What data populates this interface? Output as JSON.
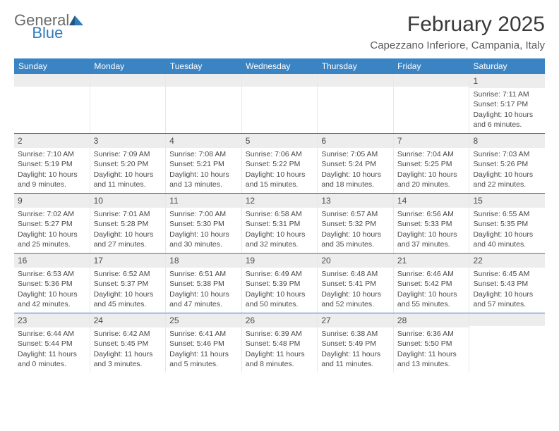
{
  "logo": {
    "text_general": "General",
    "text_blue": "Blue"
  },
  "title": "February 2025",
  "location": "Capezzano Inferiore, Campania, Italy",
  "colors": {
    "header_bg": "#3b84c4",
    "header_text": "#ffffff",
    "band_bg": "#ededed",
    "row_border": "#2f7bbf",
    "text": "#4a4a4a",
    "logo_blue": "#2f7bbf",
    "logo_gray": "#6b6b6b"
  },
  "daynames": [
    "Sunday",
    "Monday",
    "Tuesday",
    "Wednesday",
    "Thursday",
    "Friday",
    "Saturday"
  ],
  "weeks": [
    [
      null,
      null,
      null,
      null,
      null,
      null,
      {
        "n": "1",
        "sunrise": "Sunrise: 7:11 AM",
        "sunset": "Sunset: 5:17 PM",
        "day1": "Daylight: 10 hours",
        "day2": "and 6 minutes."
      }
    ],
    [
      {
        "n": "2",
        "sunrise": "Sunrise: 7:10 AM",
        "sunset": "Sunset: 5:19 PM",
        "day1": "Daylight: 10 hours",
        "day2": "and 9 minutes."
      },
      {
        "n": "3",
        "sunrise": "Sunrise: 7:09 AM",
        "sunset": "Sunset: 5:20 PM",
        "day1": "Daylight: 10 hours",
        "day2": "and 11 minutes."
      },
      {
        "n": "4",
        "sunrise": "Sunrise: 7:08 AM",
        "sunset": "Sunset: 5:21 PM",
        "day1": "Daylight: 10 hours",
        "day2": "and 13 minutes."
      },
      {
        "n": "5",
        "sunrise": "Sunrise: 7:06 AM",
        "sunset": "Sunset: 5:22 PM",
        "day1": "Daylight: 10 hours",
        "day2": "and 15 minutes."
      },
      {
        "n": "6",
        "sunrise": "Sunrise: 7:05 AM",
        "sunset": "Sunset: 5:24 PM",
        "day1": "Daylight: 10 hours",
        "day2": "and 18 minutes."
      },
      {
        "n": "7",
        "sunrise": "Sunrise: 7:04 AM",
        "sunset": "Sunset: 5:25 PM",
        "day1": "Daylight: 10 hours",
        "day2": "and 20 minutes."
      },
      {
        "n": "8",
        "sunrise": "Sunrise: 7:03 AM",
        "sunset": "Sunset: 5:26 PM",
        "day1": "Daylight: 10 hours",
        "day2": "and 22 minutes."
      }
    ],
    [
      {
        "n": "9",
        "sunrise": "Sunrise: 7:02 AM",
        "sunset": "Sunset: 5:27 PM",
        "day1": "Daylight: 10 hours",
        "day2": "and 25 minutes."
      },
      {
        "n": "10",
        "sunrise": "Sunrise: 7:01 AM",
        "sunset": "Sunset: 5:28 PM",
        "day1": "Daylight: 10 hours",
        "day2": "and 27 minutes."
      },
      {
        "n": "11",
        "sunrise": "Sunrise: 7:00 AM",
        "sunset": "Sunset: 5:30 PM",
        "day1": "Daylight: 10 hours",
        "day2": "and 30 minutes."
      },
      {
        "n": "12",
        "sunrise": "Sunrise: 6:58 AM",
        "sunset": "Sunset: 5:31 PM",
        "day1": "Daylight: 10 hours",
        "day2": "and 32 minutes."
      },
      {
        "n": "13",
        "sunrise": "Sunrise: 6:57 AM",
        "sunset": "Sunset: 5:32 PM",
        "day1": "Daylight: 10 hours",
        "day2": "and 35 minutes."
      },
      {
        "n": "14",
        "sunrise": "Sunrise: 6:56 AM",
        "sunset": "Sunset: 5:33 PM",
        "day1": "Daylight: 10 hours",
        "day2": "and 37 minutes."
      },
      {
        "n": "15",
        "sunrise": "Sunrise: 6:55 AM",
        "sunset": "Sunset: 5:35 PM",
        "day1": "Daylight: 10 hours",
        "day2": "and 40 minutes."
      }
    ],
    [
      {
        "n": "16",
        "sunrise": "Sunrise: 6:53 AM",
        "sunset": "Sunset: 5:36 PM",
        "day1": "Daylight: 10 hours",
        "day2": "and 42 minutes."
      },
      {
        "n": "17",
        "sunrise": "Sunrise: 6:52 AM",
        "sunset": "Sunset: 5:37 PM",
        "day1": "Daylight: 10 hours",
        "day2": "and 45 minutes."
      },
      {
        "n": "18",
        "sunrise": "Sunrise: 6:51 AM",
        "sunset": "Sunset: 5:38 PM",
        "day1": "Daylight: 10 hours",
        "day2": "and 47 minutes."
      },
      {
        "n": "19",
        "sunrise": "Sunrise: 6:49 AM",
        "sunset": "Sunset: 5:39 PM",
        "day1": "Daylight: 10 hours",
        "day2": "and 50 minutes."
      },
      {
        "n": "20",
        "sunrise": "Sunrise: 6:48 AM",
        "sunset": "Sunset: 5:41 PM",
        "day1": "Daylight: 10 hours",
        "day2": "and 52 minutes."
      },
      {
        "n": "21",
        "sunrise": "Sunrise: 6:46 AM",
        "sunset": "Sunset: 5:42 PM",
        "day1": "Daylight: 10 hours",
        "day2": "and 55 minutes."
      },
      {
        "n": "22",
        "sunrise": "Sunrise: 6:45 AM",
        "sunset": "Sunset: 5:43 PM",
        "day1": "Daylight: 10 hours",
        "day2": "and 57 minutes."
      }
    ],
    [
      {
        "n": "23",
        "sunrise": "Sunrise: 6:44 AM",
        "sunset": "Sunset: 5:44 PM",
        "day1": "Daylight: 11 hours",
        "day2": "and 0 minutes."
      },
      {
        "n": "24",
        "sunrise": "Sunrise: 6:42 AM",
        "sunset": "Sunset: 5:45 PM",
        "day1": "Daylight: 11 hours",
        "day2": "and 3 minutes."
      },
      {
        "n": "25",
        "sunrise": "Sunrise: 6:41 AM",
        "sunset": "Sunset: 5:46 PM",
        "day1": "Daylight: 11 hours",
        "day2": "and 5 minutes."
      },
      {
        "n": "26",
        "sunrise": "Sunrise: 6:39 AM",
        "sunset": "Sunset: 5:48 PM",
        "day1": "Daylight: 11 hours",
        "day2": "and 8 minutes."
      },
      {
        "n": "27",
        "sunrise": "Sunrise: 6:38 AM",
        "sunset": "Sunset: 5:49 PM",
        "day1": "Daylight: 11 hours",
        "day2": "and 11 minutes."
      },
      {
        "n": "28",
        "sunrise": "Sunrise: 6:36 AM",
        "sunset": "Sunset: 5:50 PM",
        "day1": "Daylight: 11 hours",
        "day2": "and 13 minutes."
      },
      null
    ]
  ]
}
